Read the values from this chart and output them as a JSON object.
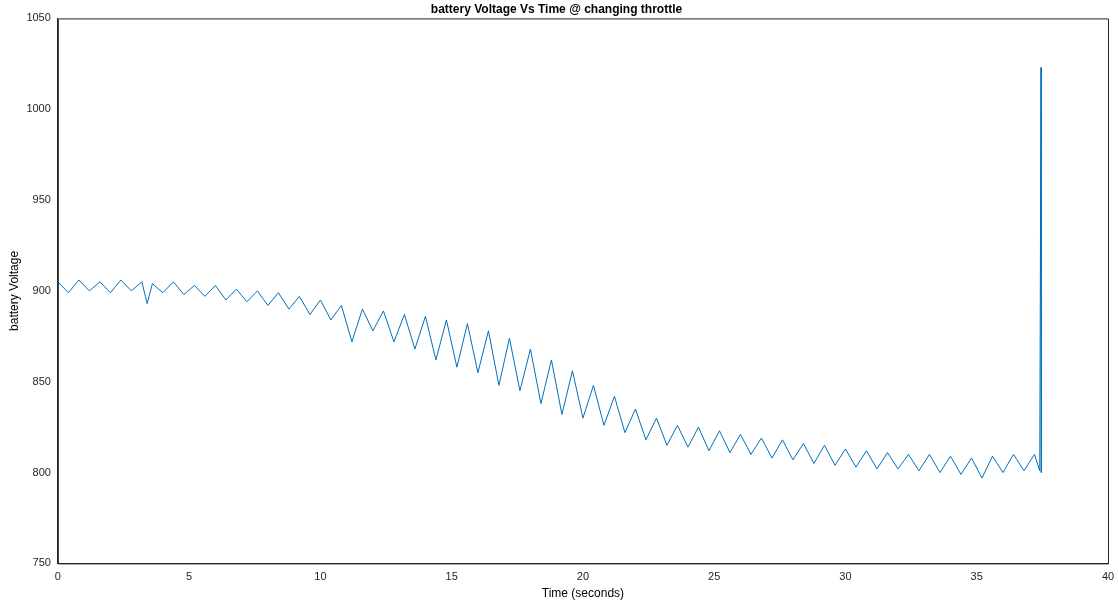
{
  "chart_data": {
    "type": "line",
    "title": "battery Voltage Vs Time @ changing throttle",
    "xlabel": "Time (seconds)",
    "ylabel": "battery Voltage",
    "xlim": [
      0,
      40
    ],
    "xticks": [
      0,
      5,
      10,
      15,
      20,
      25,
      30,
      35,
      40
    ],
    "ylim": [
      750,
      1050
    ],
    "yticks": [
      750,
      800,
      850,
      900,
      950,
      1000,
      1050
    ],
    "grid": false,
    "legend": false,
    "marker": "none",
    "line_style": "solid",
    "series": [
      {
        "color": "#0072bd",
        "x": [
          0,
          0.4,
          0.8,
          1.2,
          1.6,
          2,
          2.4,
          2.8,
          3.2,
          3.4,
          3.6,
          4,
          4.4,
          4.8,
          5.2,
          5.6,
          6,
          6.4,
          6.8,
          7.2,
          7.6,
          8,
          8.4,
          8.8,
          9.2,
          9.6,
          10,
          10.4,
          10.8,
          11.2,
          11.6,
          12,
          12.4,
          12.8,
          13.2,
          13.6,
          14,
          14.4,
          14.8,
          15.2,
          15.6,
          16,
          16.4,
          16.8,
          17.2,
          17.6,
          18,
          18.4,
          18.8,
          19.2,
          19.6,
          20,
          20.4,
          20.8,
          21.2,
          21.6,
          22,
          22.4,
          22.8,
          23.2,
          23.6,
          24,
          24.4,
          24.8,
          25.2,
          25.6,
          26,
          26.4,
          26.8,
          27.2,
          27.6,
          28,
          28.4,
          28.8,
          29.2,
          29.6,
          30,
          30.4,
          30.8,
          31.2,
          31.6,
          32,
          32.4,
          32.8,
          33.2,
          33.6,
          34,
          34.4,
          34.8,
          35.2,
          35.6,
          36,
          36.4,
          36.8,
          37.2,
          37.4,
          37.45,
          37.46
        ],
        "values": [
          905,
          899,
          906,
          900,
          905,
          899,
          906,
          900,
          905,
          893,
          904,
          899,
          905,
          898,
          903,
          897,
          903,
          895,
          901,
          894,
          900,
          892,
          899,
          890,
          897,
          887,
          895,
          884,
          892,
          872,
          890,
          878,
          889,
          872,
          887,
          868,
          886,
          862,
          884,
          858,
          882,
          855,
          878,
          848,
          874,
          845,
          868,
          838,
          862,
          832,
          856,
          830,
          848,
          826,
          842,
          822,
          835,
          818,
          830,
          815,
          826,
          814,
          825,
          812,
          823,
          811,
          821,
          810,
          819,
          808,
          818,
          807,
          816,
          805,
          815,
          804,
          813,
          803,
          812,
          802,
          811,
          802,
          810,
          801,
          810,
          800,
          809,
          799,
          808,
          797,
          809,
          800,
          810,
          801,
          810,
          801,
          1023,
          800
        ]
      }
    ]
  }
}
